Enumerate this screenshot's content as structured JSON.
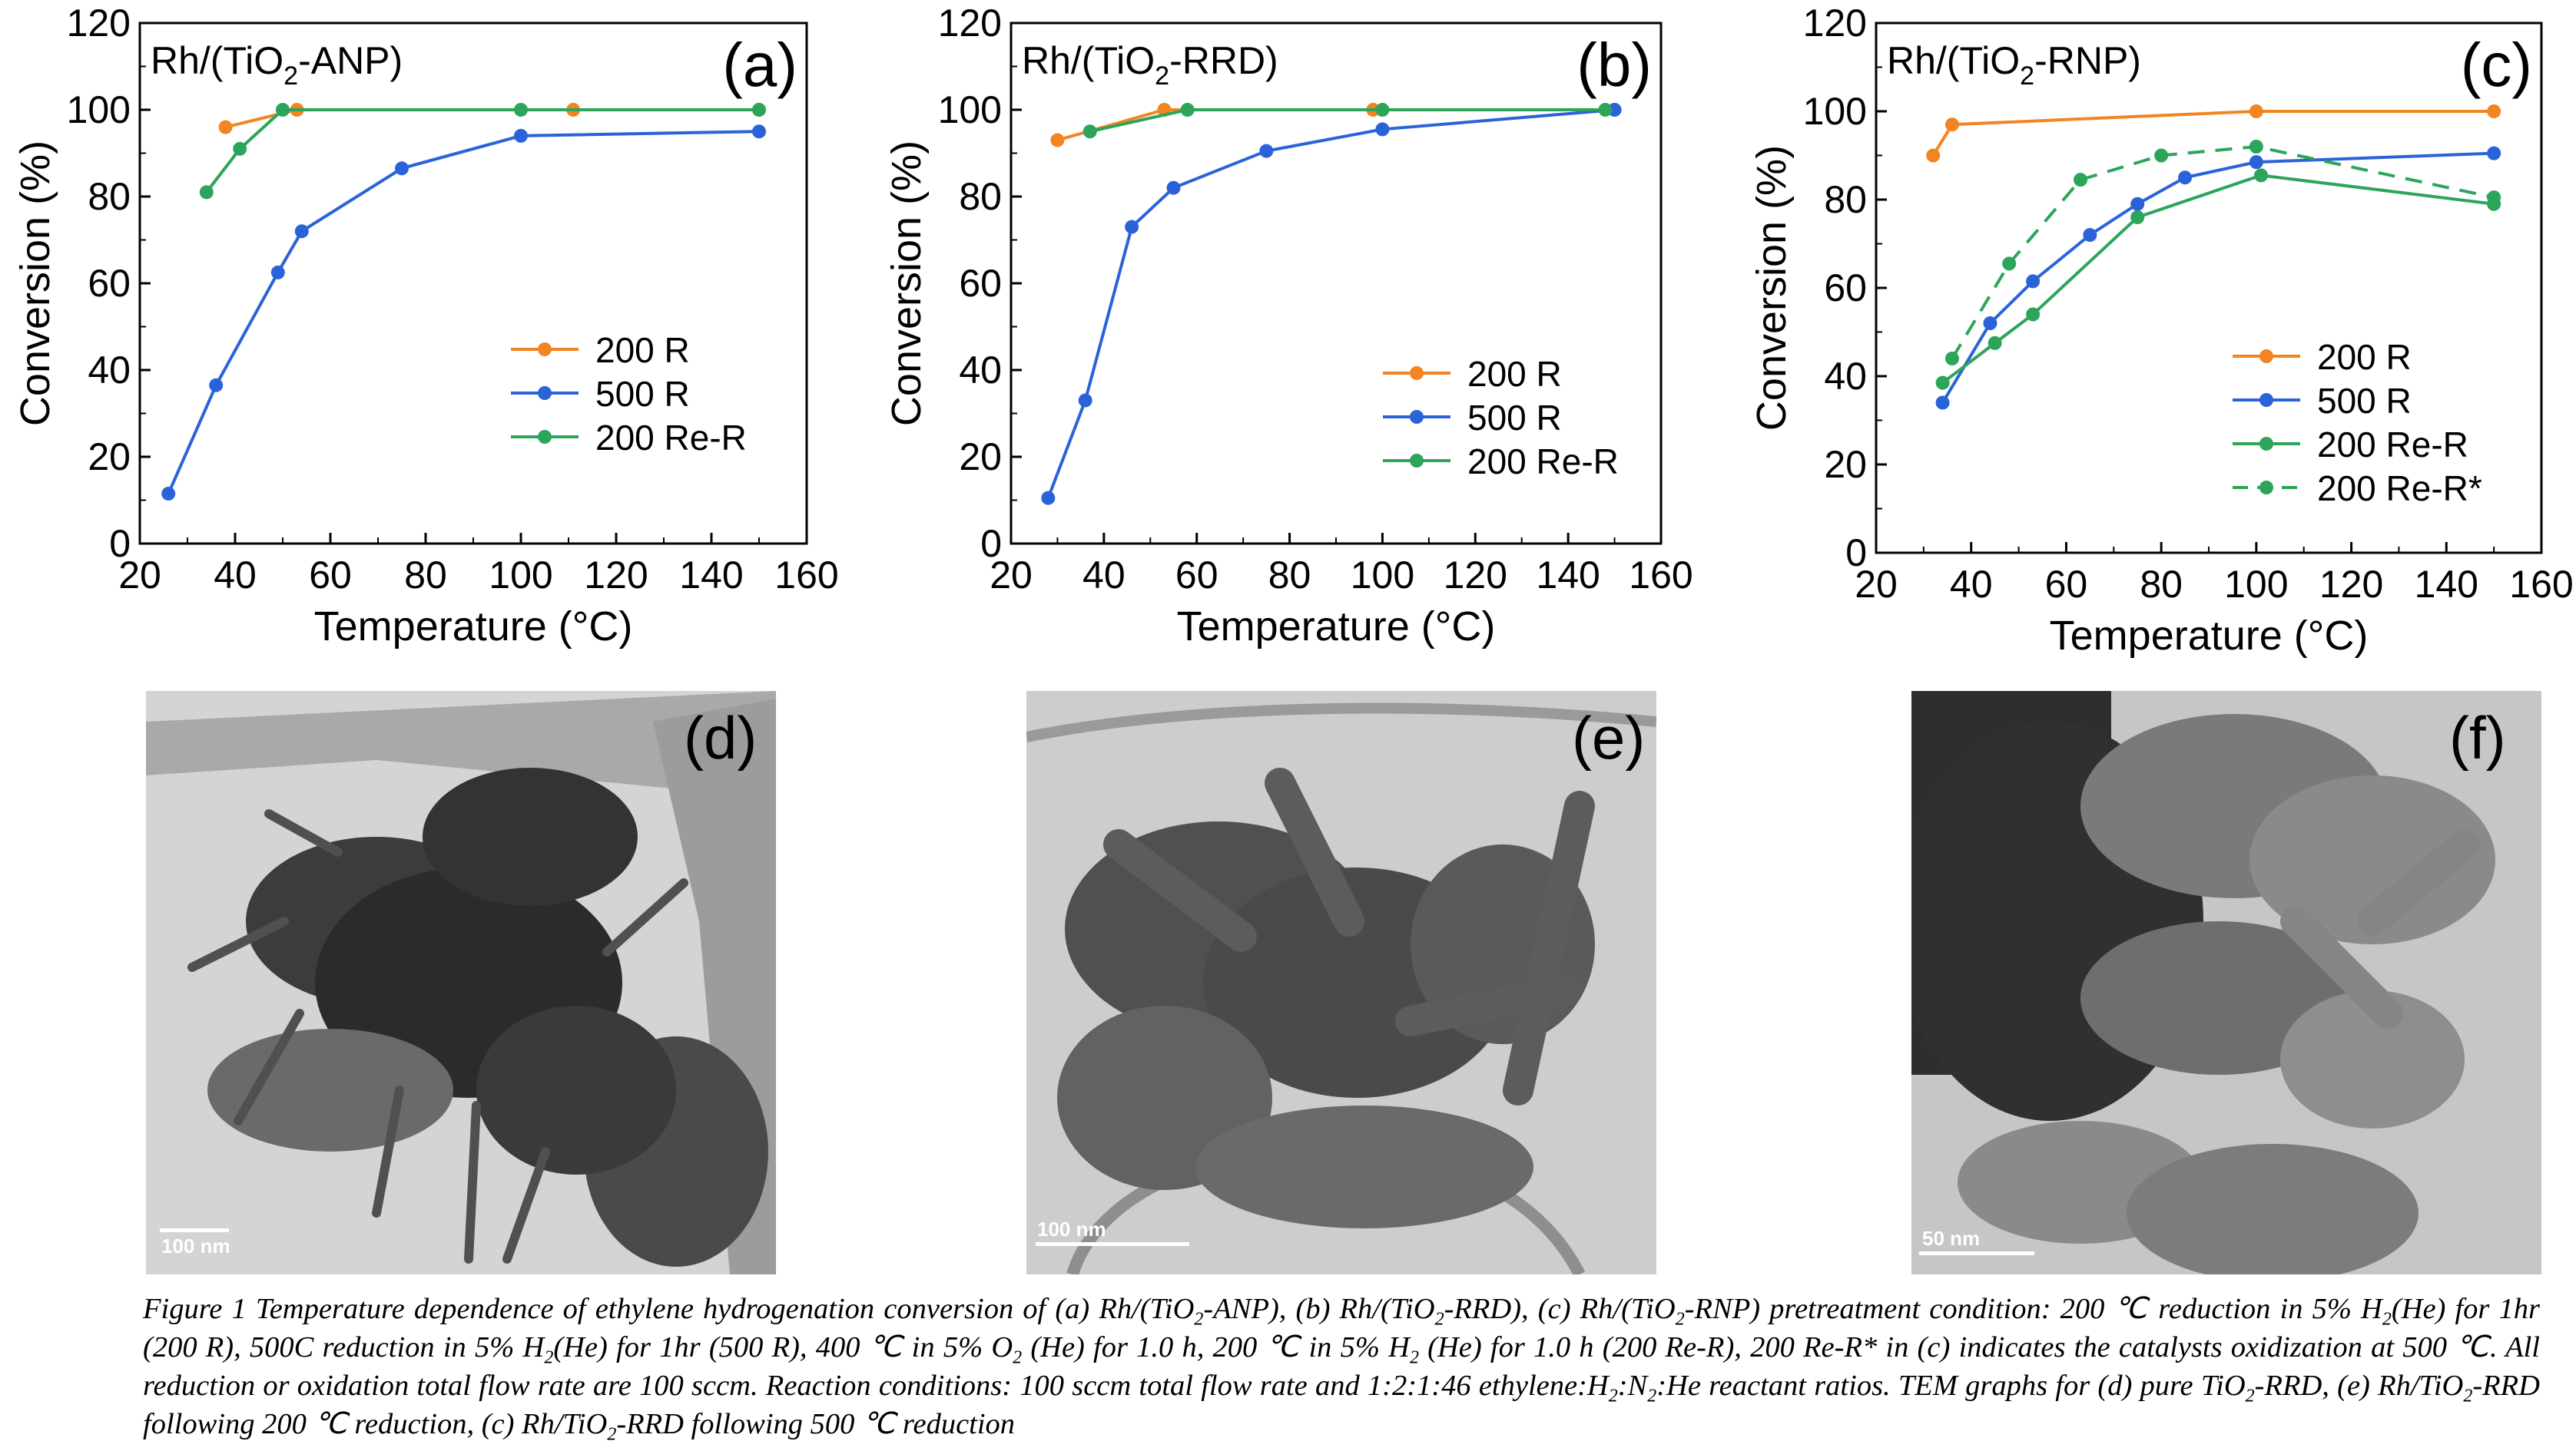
{
  "charts": [
    {
      "panel_label": "(a)",
      "sample_label": "Rh/(TiO",
      "sample_sub": "2",
      "sample_suffix": "-ANP)",
      "ylabel": "Conversion (%)",
      "xlabel": "Temperature (°C)",
      "x_ticks": [
        "20",
        "40",
        "60",
        "80",
        "100",
        "120",
        "140",
        "160"
      ],
      "y_ticks": [
        "0",
        "20",
        "40",
        "60",
        "80",
        "100",
        "120"
      ]
    },
    {
      "panel_label": "(b)",
      "sample_label": "Rh/(TiO",
      "sample_sub": "2",
      "sample_suffix": "-RRD)",
      "ylabel": "Conversion (%)",
      "xlabel": "Temperature (°C)",
      "x_ticks": [
        "20",
        "40",
        "60",
        "80",
        "100",
        "120",
        "140",
        "160"
      ],
      "y_ticks": [
        "0",
        "20",
        "40",
        "60",
        "80",
        "100",
        "120"
      ]
    },
    {
      "panel_label": "(c)",
      "sample_label": "Rh/(TiO",
      "sample_sub": "2",
      "sample_suffix": "-RNP)",
      "ylabel": "Conversion (%)",
      "xlabel": "Temperature (°C)",
      "x_ticks": [
        "20",
        "40",
        "60",
        "80",
        "100",
        "120",
        "140",
        "160"
      ],
      "y_ticks": [
        "0",
        "20",
        "40",
        "60",
        "80",
        "100",
        "120"
      ]
    }
  ],
  "chart_data": [
    {
      "type": "line",
      "title": "",
      "xlabel": "Temperature (°C)",
      "ylabel": "Conversion (%)",
      "xlim": [
        20,
        160
      ],
      "ylim": [
        0,
        120
      ],
      "legend_position": "right-middle",
      "series": [
        {
          "name": "200 R",
          "color": "#F28522",
          "dashed": false,
          "x": [
            38,
            53,
            111,
            150
          ],
          "y": [
            96,
            100,
            100,
            100
          ]
        },
        {
          "name": "500 R",
          "color": "#2A63D9",
          "dashed": false,
          "x": [
            26,
            36,
            49,
            54,
            75,
            100,
            150
          ],
          "y": [
            11.5,
            36.5,
            62.5,
            72,
            86.5,
            94,
            95
          ]
        },
        {
          "name": "200 Re-R",
          "color": "#2CA55A",
          "dashed": false,
          "x": [
            34,
            41,
            50,
            100,
            150
          ],
          "y": [
            81,
            91,
            100,
            100,
            100
          ]
        }
      ]
    },
    {
      "type": "line",
      "title": "",
      "xlabel": "Temperature (°C)",
      "ylabel": "Conversion (%)",
      "xlim": [
        20,
        160
      ],
      "ylim": [
        0,
        120
      ],
      "legend_position": "right-middle",
      "series": [
        {
          "name": "200 R",
          "color": "#F28522",
          "dashed": false,
          "x": [
            30,
            53,
            98,
            150
          ],
          "y": [
            93,
            100,
            100,
            100
          ]
        },
        {
          "name": "500 R",
          "color": "#2A63D9",
          "dashed": false,
          "x": [
            28,
            36,
            46,
            55,
            75,
            100,
            150
          ],
          "y": [
            10.5,
            33,
            73,
            82,
            90.5,
            95.5,
            100
          ]
        },
        {
          "name": "200 Re-R",
          "color": "#2CA55A",
          "dashed": false,
          "x": [
            37,
            58,
            100,
            148
          ],
          "y": [
            95,
            100,
            100,
            100
          ]
        }
      ]
    },
    {
      "type": "line",
      "title": "",
      "xlabel": "Temperature (°C)",
      "ylabel": "Conversion (%)",
      "xlim": [
        20,
        160
      ],
      "ylim": [
        0,
        120
      ],
      "legend_position": "right-middle",
      "series": [
        {
          "name": "200 R",
          "color": "#F28522",
          "dashed": false,
          "x": [
            32,
            36,
            100,
            150
          ],
          "y": [
            90,
            97,
            100,
            100
          ]
        },
        {
          "name": "500 R",
          "color": "#2A63D9",
          "dashed": false,
          "x": [
            34,
            44,
            53,
            65,
            75,
            85,
            100,
            150
          ],
          "y": [
            34,
            52,
            61.5,
            72,
            79,
            85,
            88.5,
            90.5
          ]
        },
        {
          "name": "200 Re-R",
          "color": "#2CA55A",
          "dashed": false,
          "x": [
            34,
            45,
            53,
            75,
            101,
            150
          ],
          "y": [
            38.5,
            47.5,
            54,
            76,
            85.5,
            79
          ]
        },
        {
          "name": "200 Re-R*",
          "color": "#2CA55A",
          "dashed": true,
          "x": [
            36,
            48,
            63,
            80,
            100,
            150
          ],
          "y": [
            44,
            65.5,
            84.5,
            90,
            92,
            80.5
          ]
        }
      ]
    }
  ],
  "tem_panels": [
    {
      "label": "(d)",
      "scalebar": "100 nm"
    },
    {
      "label": "(e)",
      "scalebar": "100 nm"
    },
    {
      "label": "(f)",
      "scalebar": "50 nm"
    }
  ],
  "caption": {
    "p1": "Figure 1 Temperature dependence of ethylene hydrogenation conversion of (a) Rh/(TiO",
    "p2": "-ANP), (b) Rh/(TiO",
    "p3": "-RRD), (c) Rh/(TiO",
    "p4": "-RNP) pretreatment condition: 200 ℃ reduction in 5% H",
    "p5": "(He) for 1hr (200 R), 500C reduction in 5% H",
    "p6": "(He) for 1hr (500 R), 400 ℃ in 5% O",
    "p7": " (He) for 1.0 h, 200 ℃ in 5% H",
    "p8": " (He) for 1.0 h (200 Re-R), 200 Re-R* in (c) indicates the catalysts oxidization at 500 ℃. All reduction or oxidation total flow rate are 100 sccm. Reaction conditions: 100 sccm total flow rate and 1:2:1:46 ethylene:H",
    "p9": ":N",
    "p10": ":He reactant ratios. TEM graphs for (d) pure TiO",
    "p11": "-RRD, (e) Rh/TiO",
    "p12": "-RRD following 200 ℃ reduction, (c) Rh/TiO",
    "p13": "-RRD following 500 ℃ reduction",
    "sub2": "2"
  }
}
